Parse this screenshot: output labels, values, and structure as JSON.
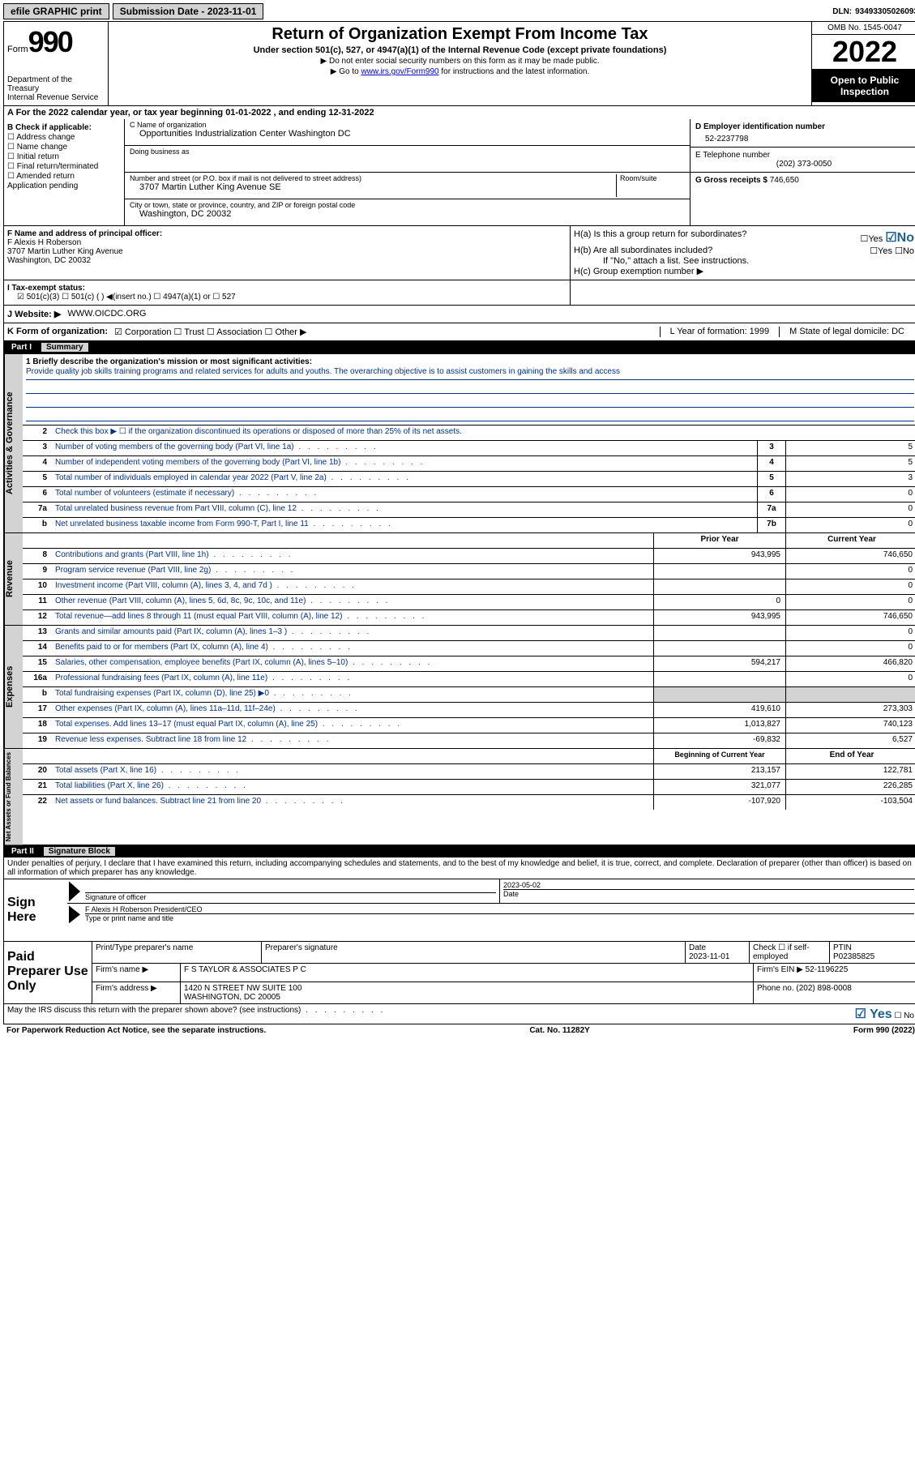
{
  "topbar": {
    "efile": "efile GRAPHIC print",
    "submission": "Submission Date - 2023-11-01",
    "dln_label": "DLN:",
    "dln": "93493305026093"
  },
  "header": {
    "form_word": "Form",
    "form_num": "990",
    "title": "Return of Organization Exempt From Income Tax",
    "sub": "Under section 501(c), 527, or 4947(a)(1) of the Internal Revenue Code (except private foundations)",
    "instr1": "▶ Do not enter social security numbers on this form as it may be made public.",
    "instr2_pre": "▶ Go to ",
    "instr2_link": "www.irs.gov/Form990",
    "instr2_post": " for instructions and the latest information.",
    "dept": "Department of the Treasury",
    "irs": "Internal Revenue Service",
    "omb": "OMB No. 1545-0047",
    "year": "2022",
    "open": "Open to Public Inspection"
  },
  "rowA": "A For the 2022 calendar year, or tax year beginning 01-01-2022    , and ending 12-31-2022",
  "b": {
    "hdr": "B Check if applicable:",
    "opts": [
      "☐ Address change",
      "☐ Name change",
      "☐ Initial return",
      "☐ Final return/terminated",
      "☐ Amended return",
      "   Application pending"
    ]
  },
  "c": {
    "name_lbl": "C Name of organization",
    "name": "Opportunities Industrialization Center Washington DC",
    "dba_lbl": "Doing business as",
    "street_lbl": "Number and street (or P.O. box if mail is not delivered to street address)",
    "room_lbl": "Room/suite",
    "street": "3707 Martin Luther King Avenue SE",
    "city_lbl": "City or town, state or province, country, and ZIP or foreign postal code",
    "city": "Washington, DC  20032"
  },
  "d": {
    "ein_lbl": "D Employer identification number",
    "ein": "52-2237798",
    "tel_lbl": "E Telephone number",
    "tel": "(202) 373-0050",
    "gross_lbl": "G Gross receipts $",
    "gross": "746,650"
  },
  "f": {
    "lbl": "F  Name and address of principal officer:",
    "name": "F Alexis H Roberson",
    "addr1": "3707 Martin Luther King Avenue",
    "addr2": "Washington, DC  20032"
  },
  "h": {
    "a": "H(a)  Is this a group return for subordinates?",
    "b": "H(b)  Are all subordinates included?",
    "note": "If \"No,\" attach a list. See instructions.",
    "c": "H(c)  Group exemption number ▶",
    "yes": "☐Yes",
    "no_checked": "☑No",
    "no": "☐No"
  },
  "i": {
    "lbl": "I    Tax-exempt status:",
    "opts": "☑ 501(c)(3)    ☐  501(c) (  ) ◀(insert no.)      ☐ 4947(a)(1) or   ☐ 527"
  },
  "j": {
    "lbl": "J   Website: ▶",
    "val": "WWW.OICDC.ORG"
  },
  "k": {
    "lbl": "K Form of organization:",
    "opts": "☑ Corporation  ☐ Trust  ☐ Association  ☐ Other ▶",
    "l": "L Year of formation: 1999",
    "m": "M State of legal domicile: DC"
  },
  "part1": {
    "num": "Part I",
    "title": "Summary"
  },
  "mission": {
    "q": "1  Briefly describe the organization's mission or most significant activities:",
    "text": "Provide quality job skills training programs and related services for adults and youths. The overarching objective is to assist customers in gaining the skills and access"
  },
  "line2": "Check this box ▶ ☐  if the organization discontinued its operations or disposed of more than 25% of its net assets.",
  "ag_lines": [
    {
      "n": "3",
      "t": "Number of voting members of the governing body (Part VI, line 1a)",
      "b": "3",
      "v": "5"
    },
    {
      "n": "4",
      "t": "Number of independent voting members of the governing body (Part VI, line 1b)",
      "b": "4",
      "v": "5"
    },
    {
      "n": "5",
      "t": "Total number of individuals employed in calendar year 2022 (Part V, line 2a)",
      "b": "5",
      "v": "3"
    },
    {
      "n": "6",
      "t": "Total number of volunteers (estimate if necessary)",
      "b": "6",
      "v": "0"
    },
    {
      "n": "7a",
      "t": "Total unrelated business revenue from Part VIII, column (C), line 12",
      "b": "7a",
      "v": "0"
    },
    {
      "n": "b",
      "t": "Net unrelated business taxable income from Form 990-T, Part I, line 11",
      "b": "7b",
      "v": "0"
    }
  ],
  "rev_hdr": {
    "py": "Prior Year",
    "cy": "Current Year"
  },
  "rev_lines": [
    {
      "n": "8",
      "t": "Contributions and grants (Part VIII, line 1h)",
      "py": "943,995",
      "cy": "746,650"
    },
    {
      "n": "9",
      "t": "Program service revenue (Part VIII, line 2g)",
      "py": "",
      "cy": "0"
    },
    {
      "n": "10",
      "t": "Investment income (Part VIII, column (A), lines 3, 4, and 7d )",
      "py": "",
      "cy": "0"
    },
    {
      "n": "11",
      "t": "Other revenue (Part VIII, column (A), lines 5, 6d, 8c, 9c, 10c, and 11e)",
      "py": "0",
      "cy": "0"
    },
    {
      "n": "12",
      "t": "Total revenue—add lines 8 through 11 (must equal Part VIII, column (A), line 12)",
      "py": "943,995",
      "cy": "746,650"
    }
  ],
  "exp_lines": [
    {
      "n": "13",
      "t": "Grants and similar amounts paid (Part IX, column (A), lines 1–3 )",
      "py": "",
      "cy": "0"
    },
    {
      "n": "14",
      "t": "Benefits paid to or for members (Part IX, column (A), line 4)",
      "py": "",
      "cy": "0"
    },
    {
      "n": "15",
      "t": "Salaries, other compensation, employee benefits (Part IX, column (A), lines 5–10)",
      "py": "594,217",
      "cy": "466,820"
    },
    {
      "n": "16a",
      "t": "Professional fundraising fees (Part IX, column (A), line 11e)",
      "py": "",
      "cy": "0"
    },
    {
      "n": "b",
      "t": "Total fundraising expenses (Part IX, column (D), line 25) ▶0",
      "py": "GRAY",
      "cy": "GRAY"
    },
    {
      "n": "17",
      "t": "Other expenses (Part IX, column (A), lines 11a–11d, 11f–24e)",
      "py": "419,610",
      "cy": "273,303"
    },
    {
      "n": "18",
      "t": "Total expenses. Add lines 13–17 (must equal Part IX, column (A), line 25)",
      "py": "1,013,827",
      "cy": "740,123"
    },
    {
      "n": "19",
      "t": "Revenue less expenses. Subtract line 18 from line 12",
      "py": "-69,832",
      "cy": "6,527"
    }
  ],
  "na_hdr": {
    "py": "Beginning of Current Year",
    "cy": "End of Year"
  },
  "na_lines": [
    {
      "n": "20",
      "t": "Total assets (Part X, line 16)",
      "py": "213,157",
      "cy": "122,781"
    },
    {
      "n": "21",
      "t": "Total liabilities (Part X, line 26)",
      "py": "321,077",
      "cy": "226,285"
    },
    {
      "n": "22",
      "t": "Net assets or fund balances. Subtract line 21 from line 20",
      "py": "-107,920",
      "cy": "-103,504"
    }
  ],
  "side": {
    "ag": "Activities & Governance",
    "rev": "Revenue",
    "exp": "Expenses",
    "na": "Net Assets or Fund Balances"
  },
  "part2": {
    "num": "Part II",
    "title": "Signature Block"
  },
  "sig_text": "Under penalties of perjury, I declare that I have examined this return, including accompanying schedules and statements, and to the best of my knowledge and belief, it is true, correct, and complete. Declaration of preparer (other than officer) is based on all information of which preparer has any knowledge.",
  "sign": {
    "here": "Sign Here",
    "sig_lbl": "Signature of officer",
    "date": "2023-05-02",
    "date_lbl": "Date",
    "name": "F Alexis H Roberson  President/CEO",
    "name_lbl": "Type or print name and title"
  },
  "prep": {
    "title": "Paid Preparer Use Only",
    "c1": "Print/Type preparer's name",
    "c2": "Preparer's signature",
    "c3_lbl": "Date",
    "c3": "2023-11-01",
    "c4": "Check ☐  if self-employed",
    "c5_lbl": "PTIN",
    "c5": "P02385825",
    "firm_lbl": "Firm's name    ▶",
    "firm": "F S TAYLOR & ASSOCIATES P C",
    "ein_lbl": "Firm's EIN ▶",
    "ein": "52-1196225",
    "addr_lbl": "Firm's address ▶",
    "addr1": "1420 N STREET NW SUITE 100",
    "addr2": "WASHINGTON, DC  20005",
    "ph_lbl": "Phone no.",
    "ph": "(202) 898-0008"
  },
  "discuss": {
    "q": "May the IRS discuss this return with the preparer shown above? (see instructions)",
    "yes": "☑ Yes",
    "no": "☐ No"
  },
  "footer": {
    "l": "For Paperwork Reduction Act Notice, see the separate instructions.",
    "m": "Cat. No. 11282Y",
    "r": "Form 990 (2022)"
  }
}
